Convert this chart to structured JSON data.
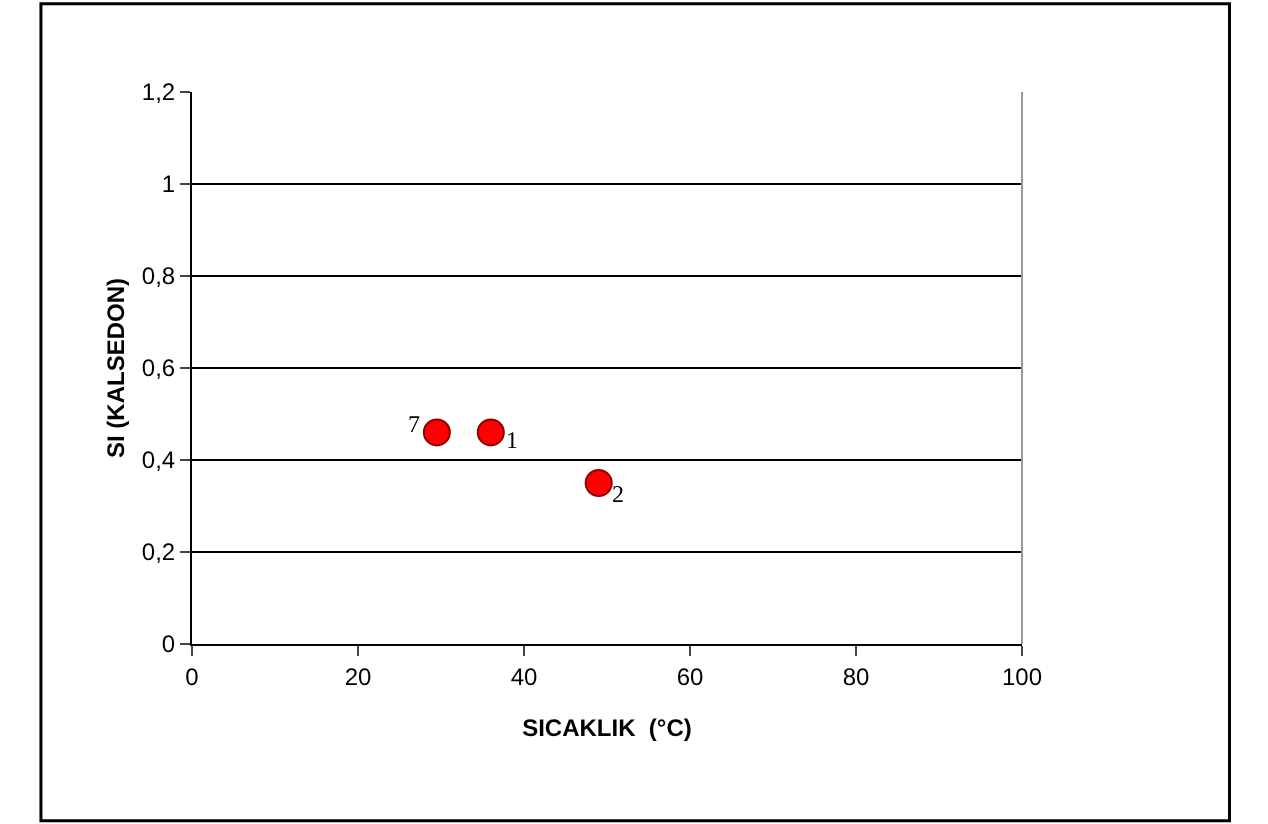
{
  "chart_data": {
    "type": "scatter",
    "xlabel": "SICAKLIK  (°C)",
    "ylabel": "SI (KALSEDON)",
    "x": [
      29.5,
      36,
      49
    ],
    "values": [
      0.46,
      0.46,
      0.35
    ],
    "color": "#ff0000",
    "marker": "circle",
    "xlim": [
      0,
      100
    ],
    "xticks": [
      0,
      20,
      40,
      60,
      80,
      100
    ],
    "ylim": [
      0,
      1.2
    ],
    "yticks": [
      0,
      {
        "value": 0.2,
        "label": "0,2"
      },
      {
        "value": 0.4,
        "label": "0,4"
      },
      {
        "value": 0.6,
        "label": "0,6"
      },
      {
        "value": 0.8,
        "label": "0,8"
      },
      1,
      {
        "value": 1.2,
        "label": "1,2"
      }
    ],
    "grid": "y",
    "legend": false,
    "annotations": [
      {
        "text": "7",
        "x": 29.5,
        "y": 0.46
      },
      {
        "text": "1",
        "x": 36,
        "y": 0.46
      },
      {
        "text": "2",
        "x": 49,
        "y": 0.35
      }
    ]
  }
}
